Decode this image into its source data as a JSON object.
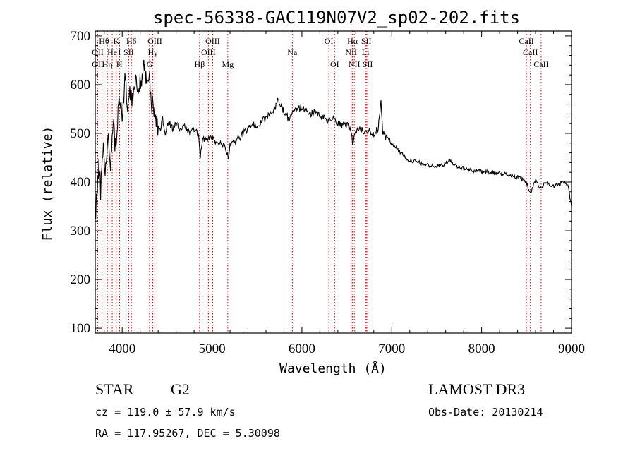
{
  "chart_data": {
    "type": "line",
    "title": "spec-56338-GAC119N07V2_sp02-202.fits",
    "xlabel": "Wavelength (Å)",
    "ylabel": "Flux (relative)",
    "xlim": [
      3700,
      9000
    ],
    "ylim": [
      90,
      710
    ],
    "xticks": [
      4000,
      5000,
      6000,
      7000,
      8000,
      9000
    ],
    "yticks": [
      100,
      200,
      300,
      400,
      500,
      600,
      700
    ],
    "series": [
      {
        "name": "flux",
        "color": "#000000",
        "points": [
          [
            3700,
            330
          ],
          [
            3740,
            440
          ],
          [
            3760,
            380
          ],
          [
            3790,
            470
          ],
          [
            3810,
            420
          ],
          [
            3840,
            500
          ],
          [
            3870,
            440
          ],
          [
            3900,
            520
          ],
          [
            3930,
            460
          ],
          [
            3960,
            580
          ],
          [
            4000,
            540
          ],
          [
            4030,
            610
          ],
          [
            4060,
            560
          ],
          [
            4090,
            590
          ],
          [
            4120,
            570
          ],
          [
            4150,
            620
          ],
          [
            4180,
            590
          ],
          [
            4210,
            610
          ],
          [
            4240,
            640
          ],
          [
            4270,
            600
          ],
          [
            4300,
            620
          ],
          [
            4330,
            560
          ],
          [
            4360,
            540
          ],
          [
            4390,
            520
          ],
          [
            4420,
            505
          ],
          [
            4450,
            530
          ],
          [
            4480,
            500
          ],
          [
            4520,
            525
          ],
          [
            4560,
            510
          ],
          [
            4600,
            520
          ],
          [
            4650,
            505
          ],
          [
            4700,
            515
          ],
          [
            4750,
            500
          ],
          [
            4800,
            510
          ],
          [
            4850,
            495
          ],
          [
            4870,
            455
          ],
          [
            4900,
            490
          ],
          [
            4950,
            485
          ],
          [
            5000,
            495
          ],
          [
            5050,
            475
          ],
          [
            5100,
            480
          ],
          [
            5150,
            470
          ],
          [
            5180,
            450
          ],
          [
            5200,
            475
          ],
          [
            5250,
            480
          ],
          [
            5300,
            490
          ],
          [
            5350,
            500
          ],
          [
            5400,
            510
          ],
          [
            5450,
            520
          ],
          [
            5500,
            515
          ],
          [
            5550,
            525
          ],
          [
            5600,
            530
          ],
          [
            5650,
            540
          ],
          [
            5700,
            550
          ],
          [
            5730,
            575
          ],
          [
            5760,
            560
          ],
          [
            5800,
            545
          ],
          [
            5850,
            530
          ],
          [
            5900,
            545
          ],
          [
            5950,
            550
          ],
          [
            6000,
            555
          ],
          [
            6050,
            545
          ],
          [
            6100,
            540
          ],
          [
            6150,
            545
          ],
          [
            6200,
            535
          ],
          [
            6250,
            530
          ],
          [
            6300,
            525
          ],
          [
            6350,
            530
          ],
          [
            6400,
            520
          ],
          [
            6450,
            515
          ],
          [
            6500,
            520
          ],
          [
            6540,
            510
          ],
          [
            6563,
            480
          ],
          [
            6600,
            505
          ],
          [
            6650,
            510
          ],
          [
            6700,
            500
          ],
          [
            6750,
            505
          ],
          [
            6800,
            500
          ],
          [
            6850,
            510
          ],
          [
            6880,
            570
          ],
          [
            6900,
            500
          ],
          [
            6950,
            490
          ],
          [
            7000,
            480
          ],
          [
            7050,
            470
          ],
          [
            7100,
            460
          ],
          [
            7150,
            450
          ],
          [
            7200,
            445
          ],
          [
            7300,
            440
          ],
          [
            7400,
            435
          ],
          [
            7500,
            432
          ],
          [
            7600,
            438
          ],
          [
            7650,
            445
          ],
          [
            7700,
            435
          ],
          [
            7800,
            428
          ],
          [
            7900,
            424
          ],
          [
            8000,
            422
          ],
          [
            8100,
            420
          ],
          [
            8200,
            418
          ],
          [
            8300,
            415
          ],
          [
            8400,
            410
          ],
          [
            8498,
            400
          ],
          [
            8542,
            375
          ],
          [
            8600,
            405
          ],
          [
            8662,
            385
          ],
          [
            8700,
            400
          ],
          [
            8800,
            390
          ],
          [
            8850,
            395
          ],
          [
            8900,
            400
          ],
          [
            8960,
            395
          ],
          [
            9000,
            350
          ]
        ]
      }
    ],
    "line_markers": [
      {
        "label": "Hθ",
        "wavelength": 3798,
        "row": 1
      },
      {
        "label": "OII",
        "wavelength": 3727,
        "row": 2
      },
      {
        "label": "OII",
        "wavelength": 3727,
        "row": 3
      },
      {
        "label": "Hη",
        "wavelength": 3835,
        "row": 3
      },
      {
        "label": "He",
        "wavelength": 3889,
        "row": 2
      },
      {
        "label": "K",
        "wavelength": 3934,
        "row": 1
      },
      {
        "label": "H",
        "wavelength": 3969,
        "row": 3
      },
      {
        "label": "I",
        "wavelength": 3970,
        "row": 2
      },
      {
        "label": "SII",
        "wavelength": 4072,
        "row": 2
      },
      {
        "label": "Hδ",
        "wavelength": 4102,
        "row": 1
      },
      {
        "label": "OIII",
        "wavelength": 4363,
        "row": 1
      },
      {
        "label": "Hγ",
        "wavelength": 4340,
        "row": 2
      },
      {
        "label": "G",
        "wavelength": 4304,
        "row": 3
      },
      {
        "label": "OIII",
        "wavelength": 5007,
        "row": 1
      },
      {
        "label": "OIII",
        "wavelength": 4959,
        "row": 2
      },
      {
        "label": "Hβ",
        "wavelength": 4861,
        "row": 3
      },
      {
        "label": "Mg",
        "wavelength": 5175,
        "row": 3
      },
      {
        "label": "Na",
        "wavelength": 5893,
        "row": 2
      },
      {
        "label": "OI",
        "wavelength": 6300,
        "row": 1
      },
      {
        "label": "OI",
        "wavelength": 6364,
        "row": 3
      },
      {
        "label": "Hα",
        "wavelength": 6563,
        "row": 1
      },
      {
        "label": "SII",
        "wavelength": 6717,
        "row": 1
      },
      {
        "label": "NII",
        "wavelength": 6548,
        "row": 2
      },
      {
        "label": "Li",
        "wavelength": 6708,
        "row": 2
      },
      {
        "label": "NII",
        "wavelength": 6583,
        "row": 3
      },
      {
        "label": "SII",
        "wavelength": 6731,
        "row": 3
      },
      {
        "label": "CaII",
        "wavelength": 8498,
        "row": 1
      },
      {
        "label": "CaII",
        "wavelength": 8542,
        "row": 2
      },
      {
        "label": "CaII",
        "wavelength": 8662,
        "row": 3
      }
    ],
    "marker_color": "#cc0000"
  },
  "footer": {
    "object_class": "STAR",
    "subclass": "G2",
    "cz": "cz = 119.0 ± 57.9 km/s",
    "coords": "RA = 117.95267, DEC =   5.30098",
    "survey": "LAMOST DR3",
    "obs_date": "Obs-Date: 20130214"
  }
}
